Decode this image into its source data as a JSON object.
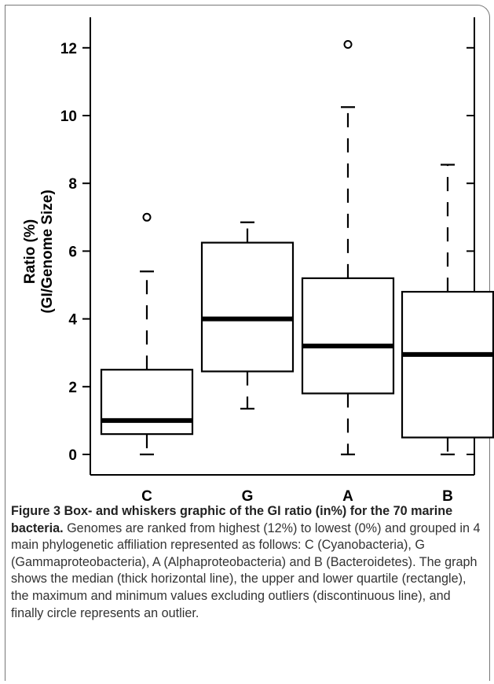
{
  "chart_data": {
    "type": "box",
    "ylabel": "Ratio (%)",
    "ylabel_line2": "(GI/Genome Size)",
    "xlabel": "",
    "title": "",
    "ylim": [
      -0.6,
      13.0
    ],
    "yticks": [
      0,
      2,
      4,
      6,
      8,
      10,
      12
    ],
    "grid": false,
    "categories": [
      "C",
      "G",
      "A",
      "B"
    ],
    "boxes": [
      {
        "category": "C",
        "min": 0.0,
        "q1": 0.6,
        "median": 1.0,
        "q3": 2.5,
        "max": 5.4,
        "outliers": [
          7.0
        ]
      },
      {
        "category": "G",
        "min": 1.35,
        "q1": 2.45,
        "median": 4.0,
        "q3": 6.25,
        "max": 6.85,
        "outliers": []
      },
      {
        "category": "A",
        "min": 0.0,
        "q1": 1.8,
        "median": 3.2,
        "q3": 5.2,
        "max": 10.25,
        "outliers": [
          12.1
        ]
      },
      {
        "category": "B",
        "min": 0.0,
        "q1": 0.5,
        "median": 2.95,
        "q3": 4.8,
        "max": 8.55,
        "outliers": []
      }
    ]
  },
  "caption": {
    "label": "Figure 3",
    "bold_text": "Box- and whiskers graphic of the GI ratio (in%) for the 70 marine bacteria.",
    "body": "Genomes are ranked from highest (12%) to lowest (0%) and grouped in 4 main phylogenetic affiliation represented as follows: C (Cyanobacteria), G (Gammaproteobacteria), A (Alphaproteobacteria) and B (Bacteroidetes). The graph shows the median (thick horizontal line), the upper and lower quartile (rectangle), the maximum and minimum values excluding outliers (discontinuous line), and finally circle represents an outlier."
  }
}
